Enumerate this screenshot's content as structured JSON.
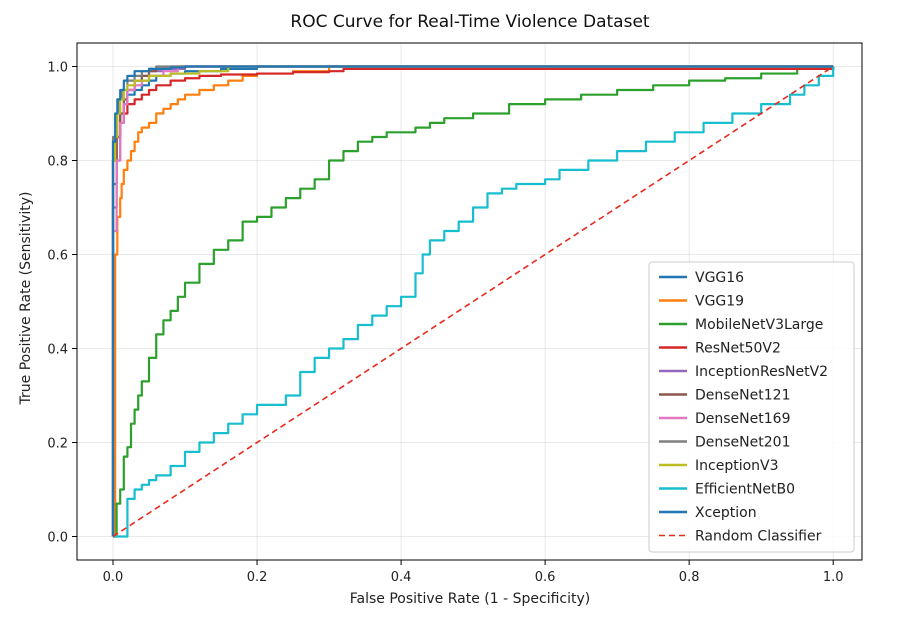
{
  "chart_data": {
    "type": "line",
    "title": "ROC Curve for Real-Time Violence Dataset",
    "xlabel": "False Positive Rate (1 - Specificity)",
    "ylabel": "True Positive Rate (Sensitivity)",
    "xlim": [
      -0.05,
      1.04
    ],
    "ylim": [
      -0.05,
      1.05
    ],
    "xticks": [
      0.0,
      0.2,
      0.4,
      0.6,
      0.8,
      1.0
    ],
    "yticks": [
      0.0,
      0.2,
      0.4,
      0.6,
      0.8,
      1.0
    ],
    "xtick_labels": [
      "0.0",
      "0.2",
      "0.4",
      "0.6",
      "0.8",
      "1.0"
    ],
    "ytick_labels": [
      "0.0",
      "0.2",
      "0.4",
      "0.6",
      "0.8",
      "1.0"
    ],
    "grid": true,
    "legend_position": "lower-right",
    "series": [
      {
        "name": "VGG16",
        "color": "#1f77b4",
        "dashed": false,
        "x": [
          0,
          0,
          0.005,
          0.005,
          0.01,
          0.01,
          0.015,
          0.02,
          0.03,
          0.04,
          0.05,
          0.06,
          0.08,
          0.1,
          0.15,
          0.2,
          1.0
        ],
        "y": [
          0,
          0.75,
          0.8,
          0.85,
          0.88,
          0.9,
          0.92,
          0.94,
          0.95,
          0.96,
          0.97,
          0.98,
          0.985,
          0.99,
          0.995,
          1.0,
          1.0
        ]
      },
      {
        "name": "VGG19",
        "color": "#ff7f0e",
        "dashed": false,
        "x": [
          0,
          0.003,
          0.003,
          0.006,
          0.006,
          0.01,
          0.012,
          0.015,
          0.02,
          0.025,
          0.03,
          0.035,
          0.04,
          0.05,
          0.06,
          0.07,
          0.08,
          0.09,
          0.1,
          0.12,
          0.14,
          0.16,
          0.18,
          0.2,
          0.25,
          0.3,
          1.0
        ],
        "y": [
          0,
          0.45,
          0.6,
          0.64,
          0.68,
          0.72,
          0.75,
          0.78,
          0.8,
          0.82,
          0.84,
          0.86,
          0.87,
          0.88,
          0.9,
          0.91,
          0.92,
          0.93,
          0.94,
          0.95,
          0.96,
          0.97,
          0.98,
          0.985,
          0.99,
          1.0,
          1.0
        ]
      },
      {
        "name": "MobileNetV3Large",
        "color": "#2ca02c",
        "dashed": false,
        "x": [
          0,
          0.005,
          0.01,
          0.015,
          0.02,
          0.025,
          0.03,
          0.035,
          0.04,
          0.05,
          0.06,
          0.07,
          0.08,
          0.09,
          0.1,
          0.12,
          0.14,
          0.16,
          0.18,
          0.2,
          0.22,
          0.24,
          0.26,
          0.28,
          0.3,
          0.32,
          0.34,
          0.36,
          0.38,
          0.4,
          0.42,
          0.44,
          0.46,
          0.48,
          0.5,
          0.55,
          0.6,
          0.65,
          0.7,
          0.75,
          0.8,
          0.85,
          0.9,
          0.95,
          1.0
        ],
        "y": [
          0,
          0.07,
          0.1,
          0.17,
          0.19,
          0.24,
          0.27,
          0.3,
          0.33,
          0.38,
          0.43,
          0.46,
          0.48,
          0.51,
          0.54,
          0.58,
          0.61,
          0.63,
          0.67,
          0.68,
          0.7,
          0.72,
          0.74,
          0.76,
          0.8,
          0.82,
          0.84,
          0.85,
          0.86,
          0.86,
          0.87,
          0.88,
          0.89,
          0.89,
          0.9,
          0.92,
          0.93,
          0.94,
          0.95,
          0.96,
          0.97,
          0.975,
          0.985,
          0.995,
          1.0
        ]
      },
      {
        "name": "ResNet50V2",
        "color": "#d62728",
        "dashed": false,
        "x": [
          0,
          0,
          0.005,
          0.01,
          0.015,
          0.02,
          0.03,
          0.04,
          0.05,
          0.06,
          0.08,
          0.1,
          0.12,
          0.15,
          0.2,
          0.25,
          0.3,
          0.32,
          1.0
        ],
        "y": [
          0,
          0.8,
          0.85,
          0.88,
          0.9,
          0.92,
          0.93,
          0.94,
          0.95,
          0.96,
          0.97,
          0.975,
          0.98,
          0.983,
          0.985,
          0.988,
          0.99,
          0.995,
          1.0
        ]
      },
      {
        "name": "InceptionResNetV2",
        "color": "#9467bd",
        "dashed": false,
        "x": [
          0,
          0,
          0.005,
          0.01,
          0.015,
          0.02,
          0.03,
          0.04,
          0.05,
          0.07,
          0.1,
          1.0
        ],
        "y": [
          0,
          0.7,
          0.8,
          0.88,
          0.92,
          0.95,
          0.97,
          0.98,
          0.99,
          0.995,
          1.0,
          1.0
        ]
      },
      {
        "name": "DenseNet121",
        "color": "#8c564b",
        "dashed": false,
        "x": [
          0,
          0,
          0.005,
          0.01,
          0.015,
          0.02,
          0.03,
          0.04,
          0.05,
          0.06,
          0.08,
          1.0
        ],
        "y": [
          0,
          0.8,
          0.85,
          0.9,
          0.93,
          0.95,
          0.97,
          0.98,
          0.99,
          0.995,
          1.0,
          1.0
        ]
      },
      {
        "name": "DenseNet169",
        "color": "#e377c2",
        "dashed": false,
        "x": [
          0,
          0,
          0.005,
          0.01,
          0.015,
          0.02,
          0.03,
          0.04,
          0.05,
          0.07,
          0.09,
          1.0
        ],
        "y": [
          0,
          0.65,
          0.8,
          0.88,
          0.92,
          0.95,
          0.96,
          0.97,
          0.98,
          0.99,
          1.0,
          1.0
        ]
      },
      {
        "name": "DenseNet201",
        "color": "#7f7f7f",
        "dashed": false,
        "x": [
          0,
          0,
          0.004,
          0.008,
          0.012,
          0.02,
          0.03,
          0.04,
          0.05,
          0.06,
          1.0
        ],
        "y": [
          0,
          0.85,
          0.9,
          0.93,
          0.95,
          0.97,
          0.98,
          0.99,
          0.995,
          1.0,
          1.0
        ]
      },
      {
        "name": "InceptionV3",
        "color": "#bcbd22",
        "dashed": false,
        "x": [
          0,
          0,
          0.003,
          0.006,
          0.01,
          0.015,
          0.02,
          0.03,
          0.05,
          0.08,
          0.12,
          0.16,
          1.0
        ],
        "y": [
          0,
          0.8,
          0.85,
          0.9,
          0.93,
          0.95,
          0.96,
          0.97,
          0.98,
          0.985,
          0.99,
          1.0,
          1.0
        ]
      },
      {
        "name": "EfficientNetB0",
        "color": "#17becf",
        "dashed": false,
        "x": [
          0,
          0.02,
          0.02,
          0.03,
          0.04,
          0.05,
          0.06,
          0.07,
          0.08,
          0.1,
          0.12,
          0.14,
          0.16,
          0.18,
          0.2,
          0.24,
          0.26,
          0.28,
          0.3,
          0.32,
          0.34,
          0.36,
          0.38,
          0.4,
          0.42,
          0.43,
          0.44,
          0.46,
          0.48,
          0.5,
          0.52,
          0.54,
          0.56,
          0.6,
          0.62,
          0.66,
          0.7,
          0.74,
          0.78,
          0.82,
          0.86,
          0.9,
          0.94,
          0.96,
          0.98,
          1.0
        ],
        "y": [
          0,
          0.02,
          0.08,
          0.1,
          0.11,
          0.12,
          0.13,
          0.13,
          0.15,
          0.18,
          0.2,
          0.22,
          0.24,
          0.26,
          0.28,
          0.3,
          0.35,
          0.38,
          0.4,
          0.42,
          0.45,
          0.47,
          0.49,
          0.51,
          0.56,
          0.6,
          0.63,
          0.65,
          0.67,
          0.7,
          0.73,
          0.74,
          0.75,
          0.76,
          0.78,
          0.8,
          0.82,
          0.84,
          0.86,
          0.88,
          0.9,
          0.92,
          0.94,
          0.96,
          0.98,
          1.0
        ]
      },
      {
        "name": "Xception",
        "color": "#1f77b4",
        "dashed": false,
        "x": [
          0,
          0,
          0.003,
          0.006,
          0.01,
          0.015,
          0.02,
          0.03,
          0.05,
          0.08,
          0.1,
          1.0
        ],
        "y": [
          0,
          0.84,
          0.9,
          0.93,
          0.95,
          0.97,
          0.98,
          0.99,
          0.995,
          0.998,
          1.0,
          1.0
        ]
      },
      {
        "name": "Random Classifier",
        "color": "#e8291c",
        "dashed": true,
        "x": [
          0,
          1
        ],
        "y": [
          0,
          1
        ]
      }
    ]
  }
}
